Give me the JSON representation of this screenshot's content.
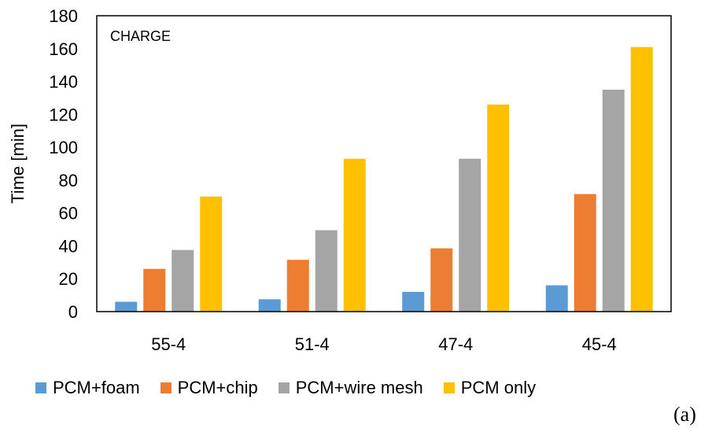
{
  "chart_data": {
    "type": "bar",
    "categories": [
      "55-4",
      "51-4",
      "47-4",
      "45-4"
    ],
    "series": [
      {
        "name": "PCM+foam",
        "color": "#5B9BD5",
        "values": [
          6,
          7.5,
          12,
          16
        ]
      },
      {
        "name": "PCM+chip",
        "color": "#ED7D31",
        "values": [
          26,
          31.5,
          38.5,
          71.5
        ]
      },
      {
        "name": "PCM+wire mesh",
        "color": "#A5A5A5",
        "values": [
          37.5,
          49.5,
          93,
          135
        ]
      },
      {
        "name": "PCM only",
        "color": "#FFC000",
        "values": [
          70,
          93,
          126,
          161
        ]
      }
    ],
    "annotation": "CHARGE",
    "xlabel": "",
    "ylabel": "Time [min]",
    "ylim": [
      0,
      180
    ],
    "yticks": [
      0,
      20,
      40,
      60,
      80,
      100,
      120,
      140,
      160,
      180
    ],
    "grid": false,
    "legend_position": "bottom",
    "panel_tag": "(a)"
  }
}
